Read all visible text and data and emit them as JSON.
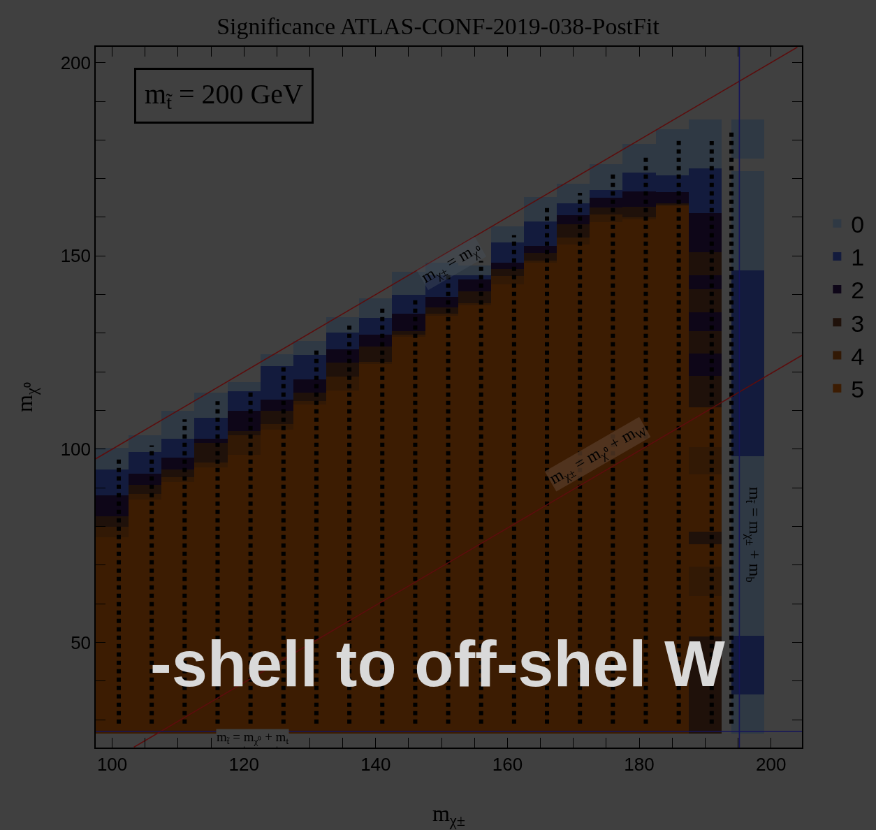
{
  "chart_data": {
    "type": "bar",
    "title": "Significance ATLAS-CONF-2019-038-PostFit",
    "xlabel": "m$_{χ±}$",
    "ylabel": "m$_{χ⁰}$",
    "xlim": [
      97.5,
      204.7
    ],
    "ylim": [
      22.8,
      204.1
    ],
    "xticks": [
      100,
      {
        "value": 105,
        "label": null
      },
      {
        "value": 110,
        "label": null
      },
      {
        "value": 115,
        "label": null
      },
      120,
      {
        "value": 125,
        "label": null
      },
      {
        "value": 130,
        "label": null
      },
      {
        "value": 135,
        "label": null
      },
      140,
      {
        "value": 145,
        "label": null
      },
      {
        "value": 150,
        "label": null
      },
      {
        "value": 155,
        "label": null
      },
      160,
      {
        "value": 165,
        "label": null
      },
      {
        "value": 170,
        "label": null
      },
      {
        "value": 175,
        "label": null
      },
      180,
      {
        "value": 185,
        "label": null
      },
      {
        "value": 190,
        "label": null
      },
      {
        "value": 195,
        "label": null
      },
      200
    ],
    "yticks": [
      {
        "value": 30,
        "label": null
      },
      {
        "value": 40,
        "label": null
      },
      50,
      {
        "value": 60,
        "label": null
      },
      {
        "value": 70,
        "label": null
      },
      {
        "value": 80,
        "label": null
      },
      {
        "value": 90,
        "label": null
      },
      100,
      {
        "value": 110,
        "label": null
      },
      {
        "value": 120,
        "label": null
      },
      {
        "value": 130,
        "label": null
      },
      {
        "value": 140,
        "label": null
      },
      150,
      {
        "value": 160,
        "label": null
      },
      {
        "value": 170,
        "label": null
      },
      {
        "value": 180,
        "label": null
      },
      {
        "value": 190,
        "label": null
      },
      200
    ],
    "legend": "right",
    "series": [
      {
        "name": "0",
        "color": "#2f3944",
        "x": [
          100,
          105,
          110,
          115,
          120,
          125,
          130,
          135,
          140,
          145,
          150,
          155,
          160,
          165,
          170,
          175,
          180,
          185,
          190,
          196.5
        ],
        "base": [
          94.8,
          99.3,
          102.7,
          108.1,
          114.9,
          121.5,
          124.4,
          130.1,
          134,
          140,
          145,
          145,
          153.4,
          159,
          163.6,
          167,
          171.5,
          170.8,
          172.6,
          175.1
        ],
        "values": [
          5.6,
          4.3,
          7.2,
          6.6,
          2.5,
          3.1,
          3.6,
          4.1,
          5.1,
          5.9,
          3.2,
          2.5,
          4.3,
          6.2,
          5,
          6.8,
          7.4,
          12,
          12.7,
          10.2
        ]
      },
      {
        "name": "1",
        "color": "#131b3d",
        "x": [
          100,
          105,
          110,
          115,
          120,
          125,
          130,
          135,
          140,
          145,
          150,
          155,
          160,
          165,
          170,
          175,
          180,
          185,
          190,
          196.5
        ],
        "base": [
          88,
          93.7,
          97.8,
          102.7,
          110,
          112.9,
          118.1,
          125.8,
          129.6,
          135,
          139.4,
          143.9,
          148.2,
          152.5,
          160.6,
          165,
          166.7,
          166.5,
          161.1,
          98.1
        ],
        "values": [
          6.8,
          5.6,
          4.9,
          5.4,
          4.9,
          8.6,
          6.3,
          4.3,
          4.4,
          5,
          5.6,
          1.1,
          5.2,
          6.5,
          3,
          2,
          4.8,
          4.3,
          11.5,
          48.1
        ]
      },
      {
        "name": "2",
        "color": "#0e0618",
        "x": [
          100,
          105,
          110,
          115,
          120,
          125,
          130,
          135,
          140,
          145,
          150,
          155,
          160,
          165,
          170,
          175,
          180,
          185,
          190
        ],
        "base": [
          82.6,
          90.7,
          94.8,
          101.6,
          104.7,
          109.9,
          114.7,
          122.4,
          126.5,
          130.6,
          136.7,
          140.9,
          146.6,
          150.7,
          158.2,
          162.5,
          162.7,
          163.6,
          150.9
        ],
        "values": [
          5.4,
          3,
          3,
          1.1,
          5.3,
          3,
          3.4,
          3.4,
          3.1,
          4.4,
          2.7,
          3,
          1.6,
          1.8,
          2.4,
          2.5,
          4,
          2.9,
          10.2
        ]
      },
      {
        "name": "3",
        "color": "#1f110a",
        "x": [
          100,
          105,
          110,
          115,
          120,
          125,
          130,
          135,
          140,
          145,
          150,
          155,
          160,
          165,
          170,
          175,
          180,
          185,
          190
        ],
        "base": [
          80,
          88.5,
          92.8,
          96.6,
          103.6,
          106.5,
          112.5,
          118.8,
          122.6,
          129.7,
          135,
          137.8,
          144.8,
          148.7,
          154.8,
          160.7,
          160,
          163.2,
          145
        ],
        "values": [
          2.6,
          2.2,
          2,
          5,
          1.1,
          3.4,
          2.2,
          3.6,
          3.9,
          0.9,
          1.7,
          3.1,
          1.8,
          2,
          3.4,
          1.8,
          2.7,
          0.4,
          5.9
        ]
      },
      {
        "name": "4",
        "color": "#321905",
        "x": [
          100,
          105,
          110,
          115,
          120,
          125,
          130,
          135,
          140,
          145,
          150,
          155,
          160,
          165,
          170,
          175,
          180,
          185,
          190
        ],
        "base": [
          77.2,
          87,
          91.4,
          95.2,
          98.6,
          105,
          111.5,
          115.2,
          122,
          129,
          134.5,
          137.3,
          142.7,
          148.2,
          152.9,
          158.8,
          159.5,
          162.8,
          93.4
        ],
        "values": [
          2.8,
          1.5,
          1.4,
          1.4,
          5,
          1.5,
          1,
          3.6,
          0.6,
          0.7,
          0.5,
          0.5,
          2.1,
          0.5,
          1.9,
          1.9,
          0.5,
          0.4,
          7.1
        ]
      },
      {
        "name": "5",
        "color": "#3c1c02",
        "x": [
          100,
          105,
          110,
          115,
          120,
          125,
          130,
          135,
          140,
          145,
          150,
          155,
          160,
          165,
          170,
          175,
          180,
          185,
          190
        ],
        "base": [
          26.5,
          26.5,
          26.5,
          26.5,
          26.5,
          26.5,
          26.5,
          26.5,
          26.5,
          26.5,
          26.5,
          26.5,
          26.5,
          26.5,
          26.5,
          26.5,
          26.5,
          26.5,
          100.5
        ],
        "values": [
          50.7,
          60.5,
          64.9,
          68.7,
          72.1,
          78.5,
          85,
          88.7,
          95.5,
          102.5,
          108,
          110.8,
          116.2,
          121.7,
          126.4,
          132.3,
          133,
          136.3,
          10.3
        ]
      },
      {
        "color": "#2f3944",
        "x": [
          196.5
        ],
        "base": [
          146.2
        ],
        "values": [
          25.8
        ]
      },
      {
        "color": "#2f3944",
        "x": [
          196.5
        ],
        "base": [
          51.8
        ],
        "values": [
          46.3
        ]
      },
      {
        "color": "#2f3944",
        "x": [
          196.5
        ],
        "base": [
          26.5
        ],
        "values": [
          10.1
        ]
      },
      {
        "color": "#131b3d",
        "x": [
          196.5
        ],
        "base": [
          36.6
        ],
        "values": [
          15.2
        ]
      },
      {
        "color": "#0e0618",
        "x": [
          190
        ],
        "base": [
          141.4
        ],
        "values": [
          3.6
        ]
      },
      {
        "color": "#0e0618",
        "x": [
          190
        ],
        "base": [
          130.6
        ],
        "values": [
          4.9
        ]
      },
      {
        "color": "#0e0618",
        "x": [
          190
        ],
        "base": [
          119
        ],
        "values": [
          5.7
        ]
      },
      {
        "color": "#1f110a",
        "x": [
          190
        ],
        "base": [
          135.5
        ],
        "values": [
          5.9
        ]
      },
      {
        "color": "#1f110a",
        "x": [
          190
        ],
        "base": [
          124.7
        ],
        "values": [
          5.9
        ]
      },
      {
        "color": "#1f110a",
        "x": [
          190
        ],
        "base": [
          110.8
        ],
        "values": [
          8.2
        ]
      },
      {
        "color": "#1f110a",
        "x": [
          190
        ],
        "base": [
          75.4
        ],
        "values": [
          3.3
        ]
      },
      {
        "color": "#1f110a",
        "x": [
          190
        ],
        "base": [
          26.5
        ],
        "values": [
          25.1
        ]
      },
      {
        "color": "#321905",
        "x": [
          190
        ],
        "base": [
          62
        ],
        "values": [
          7.7
        ]
      },
      {
        "color": "#3c1c02",
        "x": [
          190
        ],
        "base": [
          78.7
        ],
        "values": [
          14.7
        ]
      },
      {
        "color": "#3c1c02",
        "x": [
          190
        ],
        "base": [
          69.7
        ],
        "values": [
          5.7
        ]
      },
      {
        "color": "#3c1c02",
        "x": [
          190
        ],
        "base": [
          51.6
        ],
        "values": [
          10.4
        ]
      },
      {
        "type": "line",
        "color": "#000000",
        "line_style": "dotted",
        "x": [
          101,
          101
        ],
        "values": [
          29,
          98
        ]
      },
      {
        "type": "line",
        "color": "#000000",
        "line_style": "dotted",
        "x": [
          106,
          106
        ],
        "values": [
          29,
          101
        ]
      },
      {
        "type": "line",
        "color": "#000000",
        "line_style": "dotted",
        "x": [
          111,
          111
        ],
        "values": [
          29,
          107.7
        ]
      },
      {
        "type": "line",
        "color": "#000000",
        "line_style": "dotted",
        "x": [
          116,
          116
        ],
        "values": [
          29,
          112.4
        ]
      },
      {
        "type": "line",
        "color": "#000000",
        "line_style": "dotted",
        "x": [
          121,
          121
        ],
        "values": [
          29,
          115
        ]
      },
      {
        "type": "line",
        "color": "#000000",
        "line_style": "dotted",
        "x": [
          126,
          126
        ],
        "values": [
          29,
          122
        ]
      },
      {
        "type": "line",
        "color": "#000000",
        "line_style": "dotted",
        "x": [
          131,
          131
        ],
        "values": [
          29,
          125.6
        ]
      },
      {
        "type": "line",
        "color": "#000000",
        "line_style": "dotted",
        "x": [
          136,
          136
        ],
        "values": [
          29,
          132
        ]
      },
      {
        "type": "line",
        "color": "#000000",
        "line_style": "dotted",
        "x": [
          141,
          141
        ],
        "values": [
          29,
          136.7
        ]
      },
      {
        "type": "line",
        "color": "#000000",
        "line_style": "dotted",
        "x": [
          146,
          146
        ],
        "values": [
          29,
          139
        ]
      },
      {
        "type": "line",
        "color": "#000000",
        "line_style": "dotted",
        "x": [
          151,
          151
        ],
        "values": [
          29,
          145.7
        ]
      },
      {
        "type": "line",
        "color": "#000000",
        "line_style": "dotted",
        "x": [
          156,
          156
        ],
        "values": [
          29,
          148.7
        ]
      },
      {
        "type": "line",
        "color": "#000000",
        "line_style": "dotted",
        "x": [
          161,
          161
        ],
        "values": [
          29,
          155.4
        ]
      },
      {
        "type": "line",
        "color": "#000000",
        "line_style": "dotted",
        "x": [
          166,
          166
        ],
        "values": [
          29,
          163
        ]
      },
      {
        "type": "line",
        "color": "#000000",
        "line_style": "dotted",
        "x": [
          171,
          171
        ],
        "values": [
          29,
          166.3
        ]
      },
      {
        "type": "line",
        "color": "#000000",
        "line_style": "dotted",
        "x": [
          176,
          176
        ],
        "values": [
          29,
          171.5
        ]
      },
      {
        "type": "line",
        "color": "#000000",
        "line_style": "dotted",
        "x": [
          181,
          181
        ],
        "values": [
          29,
          176.2
        ]
      },
      {
        "type": "line",
        "color": "#000000",
        "line_style": "dotted",
        "x": [
          186,
          186
        ],
        "values": [
          29,
          180.1
        ]
      },
      {
        "type": "line",
        "color": "#000000",
        "line_style": "dotted",
        "x": [
          191,
          191
        ],
        "values": [
          29,
          179.7
        ]
      },
      {
        "type": "line",
        "color": "#000000",
        "line_style": "dotted",
        "x": [
          194,
          194
        ],
        "values": [
          29,
          182.4
        ]
      },
      {
        "type": "line",
        "color": "#5c0d0d",
        "x": [
          97.5,
          204
        ],
        "values": [
          97.5,
          204
        ]
      },
      {
        "type": "line",
        "color": "#5c0d0d",
        "x": [
          103.3,
          204.7
        ],
        "values": [
          22.9,
          124.3
        ]
      }
    ],
    "ref_lines": [
      {
        "axis": "y",
        "value": 27,
        "color": "#14145a"
      },
      {
        "axis": "x",
        "value": 195.2,
        "color": "#14145a"
      }
    ],
    "annotations": [
      {
        "text": "m$_{χ±}$ = m$_{χ⁰}$",
        "x": 151.5,
        "y": 148
      },
      "m$_{χ±}$ = m$_{χ⁰}$ + m$_{W}$",
      "m$_{t̃}$ = m$_{χ±}$ + m$_{b}$",
      "m$_{t̃}$ = m$_{χ⁰}$ + m$_{t}$",
      "m$_{t̃}$ = 200 GeV",
      "-shell to off-shel W"
    ]
  }
}
